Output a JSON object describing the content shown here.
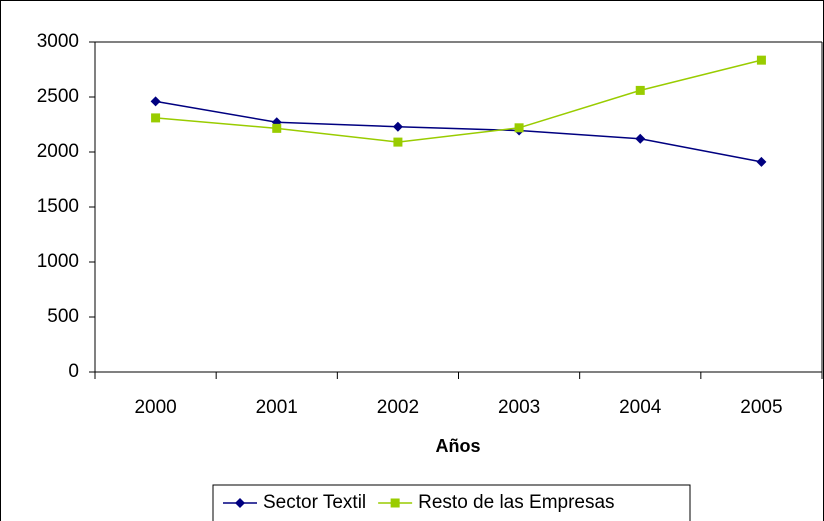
{
  "chart_data": {
    "type": "line",
    "x_label": "Años",
    "categories": [
      "2000",
      "2001",
      "2002",
      "2003",
      "2004",
      "2005"
    ],
    "series": [
      {
        "name": "Sector Textil",
        "color": "#000080",
        "marker": "diamond",
        "values": [
          2460,
          2270,
          2230,
          2195,
          2120,
          1910
        ]
      },
      {
        "name": "Resto de las Empresas",
        "color": "#99cc00",
        "marker": "square",
        "values": [
          2310,
          2215,
          2090,
          2220,
          2560,
          2835
        ]
      }
    ],
    "ylim": [
      0,
      3000
    ],
    "yticks": [
      0,
      500,
      1000,
      1500,
      2000,
      2500,
      3000
    ],
    "grid": false,
    "legend": "bottom"
  }
}
